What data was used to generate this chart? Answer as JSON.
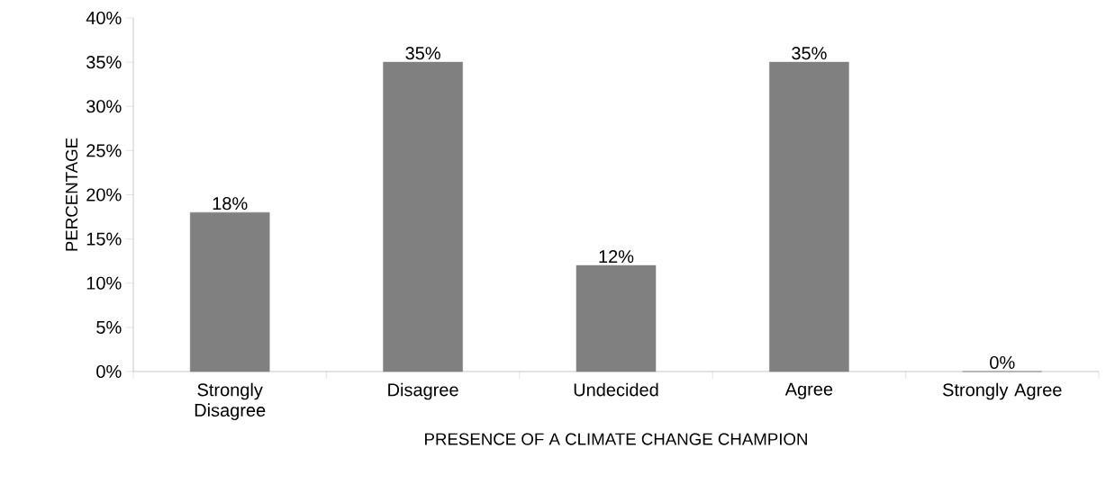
{
  "chart_data": {
    "type": "bar",
    "categories": [
      "Strongly Disagree",
      "Disagree",
      "Undecided",
      "Agree",
      "Strongly Agree"
    ],
    "values": [
      18,
      35,
      12,
      35,
      0
    ],
    "value_labels": [
      "18%",
      "35%",
      "12%",
      "35%",
      "0%"
    ],
    "color": "#808080",
    "xlabel": "PRESENCE OF A CLIMATE CHANGE CHAMPION",
    "ylabel": "PERCENTAGE",
    "ylim": [
      0,
      40
    ],
    "yticks": [
      {
        "value": 0,
        "label": "0%"
      },
      {
        "value": 5,
        "label": "5%"
      },
      {
        "value": 10,
        "label": "10%"
      },
      {
        "value": 15,
        "label": "15%"
      },
      {
        "value": 20,
        "label": "20%"
      },
      {
        "value": 25,
        "label": "25%"
      },
      {
        "value": 30,
        "label": "30%"
      },
      {
        "value": 35,
        "label": "35%"
      },
      {
        "value": 40,
        "label": "40%"
      }
    ],
    "grid": false
  }
}
